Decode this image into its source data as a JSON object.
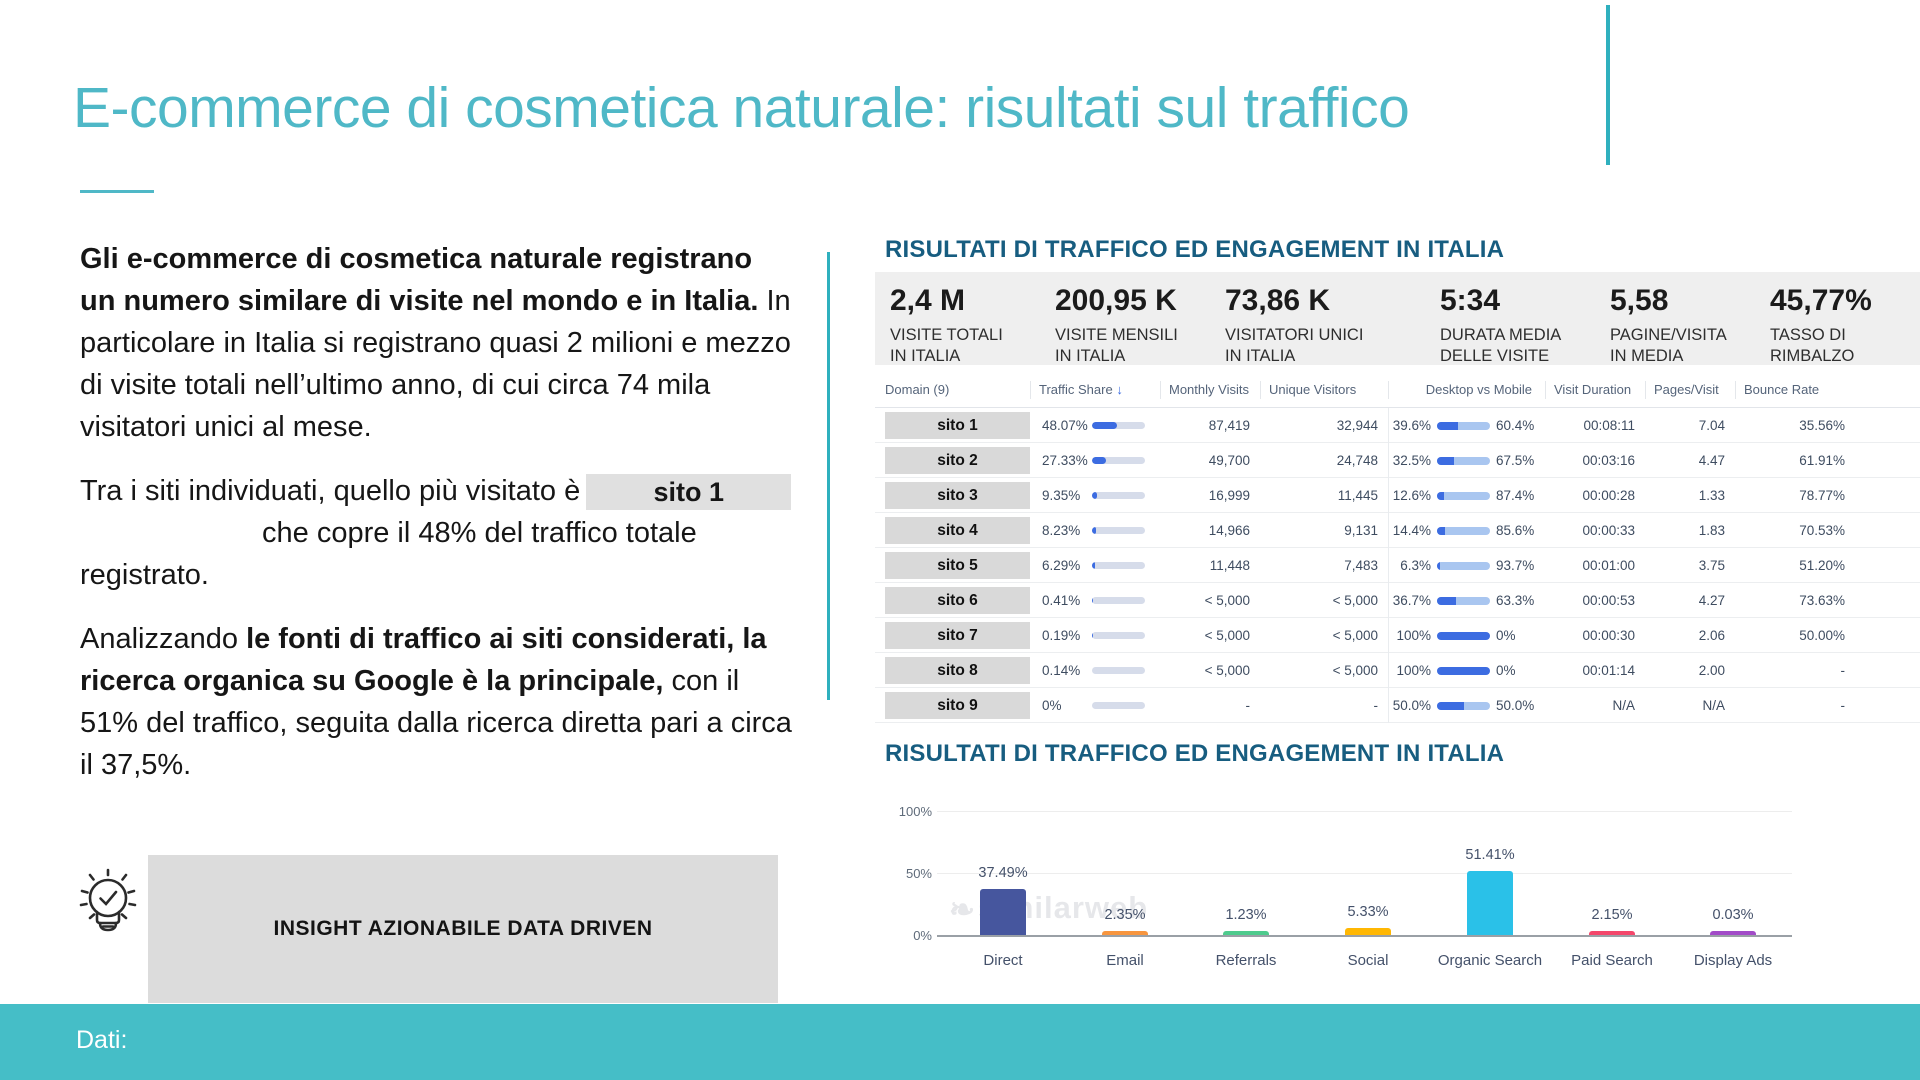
{
  "slide": {
    "title": "E-commerce di cosmetica naturale: risultati sul traffico",
    "footer_label": "Dati:",
    "insight_label": "INSIGHT AZIONABILE DATA DRIVEN"
  },
  "left_text": {
    "p1_bold": "Gli e-commerce di cosmetica naturale registrano un numero similare di visite nel mondo e in Italia.",
    "p1_rest": " In particolare in Italia si registrano quasi 2 milioni e mezzo di visite totali nell’ultimo anno, di cui circa 74 mila visitatori unici al mese.",
    "p2_before": "Tra i siti individuati, quello più visitato è",
    "p2_chip": "sito 1",
    "p2_line2": "che copre il 48% del traffico totale",
    "p2_line3": "registrato.",
    "p3_start": "Analizzando ",
    "p3_bold": "le fonti di traffico ai siti considerati, la ricerca organica su Google è la principale,",
    "p3_rest": " con il 51% del traffico, seguita dalla ricerca diretta pari a circa il 37,5%."
  },
  "right": {
    "section1_title": "RISULTATI DI TRAFFICO ED ENGAGEMENT IN ITALIA",
    "section2_title": "RISULTATI DI TRAFFICO ED ENGAGEMENT IN ITALIA",
    "kpis": [
      {
        "value": "2,4 M",
        "label1": "VISITE TOTALI",
        "label2": "IN ITALIA"
      },
      {
        "value": "200,95 K",
        "label1": "VISITE MENSILI",
        "label2": "IN ITALIA"
      },
      {
        "value": "73,86 K",
        "label1": "VISITATORI UNICI",
        "label2": "IN ITALIA"
      },
      {
        "value": "5:34",
        "label1": "DURATA MEDIA",
        "label2": "DELLE VISITE"
      },
      {
        "value": "5,58",
        "label1": "PAGINE/VISITA",
        "label2": "IN MEDIA"
      },
      {
        "value": "45,77%",
        "label1": "TASSO DI",
        "label2": "RIMBALZO"
      }
    ],
    "table": {
      "headers": [
        "Domain (9)",
        "Traffic Share",
        "Monthly Visits",
        "Unique Visitors",
        "Desktop vs Mobile",
        "Visit Duration",
        "Pages/Visit",
        "Bounce Rate"
      ],
      "sort_icon": "↓",
      "rows": [
        {
          "domain": "sito 1",
          "traffic_share": "48.07%",
          "share_pct": 48.07,
          "monthly": "87,419",
          "unique": "32,944",
          "desktop": "39.6%",
          "desktop_pct": 39.6,
          "mobile": "60.4%",
          "duration": "00:08:11",
          "pages": "7.04",
          "bounce": "35.56%"
        },
        {
          "domain": "sito 2",
          "traffic_share": "27.33%",
          "share_pct": 27.33,
          "monthly": "49,700",
          "unique": "24,748",
          "desktop": "32.5%",
          "desktop_pct": 32.5,
          "mobile": "67.5%",
          "duration": "00:03:16",
          "pages": "4.47",
          "bounce": "61.91%"
        },
        {
          "domain": "sito 3",
          "traffic_share": "9.35%",
          "share_pct": 9.35,
          "monthly": "16,999",
          "unique": "11,445",
          "desktop": "12.6%",
          "desktop_pct": 12.6,
          "mobile": "87.4%",
          "duration": "00:00:28",
          "pages": "1.33",
          "bounce": "78.77%"
        },
        {
          "domain": "sito 4",
          "traffic_share": "8.23%",
          "share_pct": 8.23,
          "monthly": "14,966",
          "unique": "9,131",
          "desktop": "14.4%",
          "desktop_pct": 14.4,
          "mobile": "85.6%",
          "duration": "00:00:33",
          "pages": "1.83",
          "bounce": "70.53%"
        },
        {
          "domain": "sito 5",
          "traffic_share": "6.29%",
          "share_pct": 6.29,
          "monthly": "11,448",
          "unique": "7,483",
          "desktop": "6.3%",
          "desktop_pct": 6.3,
          "mobile": "93.7%",
          "duration": "00:01:00",
          "pages": "3.75",
          "bounce": "51.20%"
        },
        {
          "domain": "sito 6",
          "traffic_share": "0.41%",
          "share_pct": 0.41,
          "monthly": "< 5,000",
          "unique": "< 5,000",
          "desktop": "36.7%",
          "desktop_pct": 36.7,
          "mobile": "63.3%",
          "duration": "00:00:53",
          "pages": "4.27",
          "bounce": "73.63%"
        },
        {
          "domain": "sito 7",
          "traffic_share": "0.19%",
          "share_pct": 0.19,
          "monthly": "< 5,000",
          "unique": "< 5,000",
          "desktop": "100%",
          "desktop_pct": 100,
          "mobile": "0%",
          "duration": "00:00:30",
          "pages": "2.06",
          "bounce": "50.00%"
        },
        {
          "domain": "sito 8",
          "traffic_share": "0.14%",
          "share_pct": 0.14,
          "monthly": "< 5,000",
          "unique": "< 5,000",
          "desktop": "100%",
          "desktop_pct": 100,
          "mobile": "0%",
          "duration": "00:01:14",
          "pages": "2.00",
          "bounce": "-"
        },
        {
          "domain": "sito 9",
          "traffic_share": "0%",
          "share_pct": 0,
          "monthly": "-",
          "unique": "-",
          "desktop": "50.0%",
          "desktop_pct": 50,
          "mobile": "50.0%",
          "duration": "N/A",
          "pages": "N/A",
          "bounce": "-"
        }
      ]
    }
  },
  "chart_data": {
    "type": "bar",
    "title": "RISULTATI DI TRAFFICO ED ENGAGEMENT IN ITALIA",
    "categories": [
      "Direct",
      "Email",
      "Referrals",
      "Social",
      "Organic Search",
      "Paid Search",
      "Display Ads"
    ],
    "values": [
      37.49,
      2.35,
      1.23,
      5.33,
      51.41,
      2.15,
      0.03
    ],
    "labels": [
      "37.49%",
      "2.35%",
      "1.23%",
      "5.33%",
      "51.41%",
      "2.15%",
      "0.03%"
    ],
    "colors": [
      "#46569E",
      "#F7953E",
      "#4ECB8D",
      "#FFB703",
      "#2AC1E8",
      "#F4476B",
      "#A24BC8"
    ],
    "yticks": [
      "100%",
      "50%",
      "0%"
    ],
    "ylim": [
      0,
      100
    ],
    "xlabel": "",
    "ylabel": "",
    "grid": true,
    "legend": false,
    "watermark": "similarweb"
  }
}
